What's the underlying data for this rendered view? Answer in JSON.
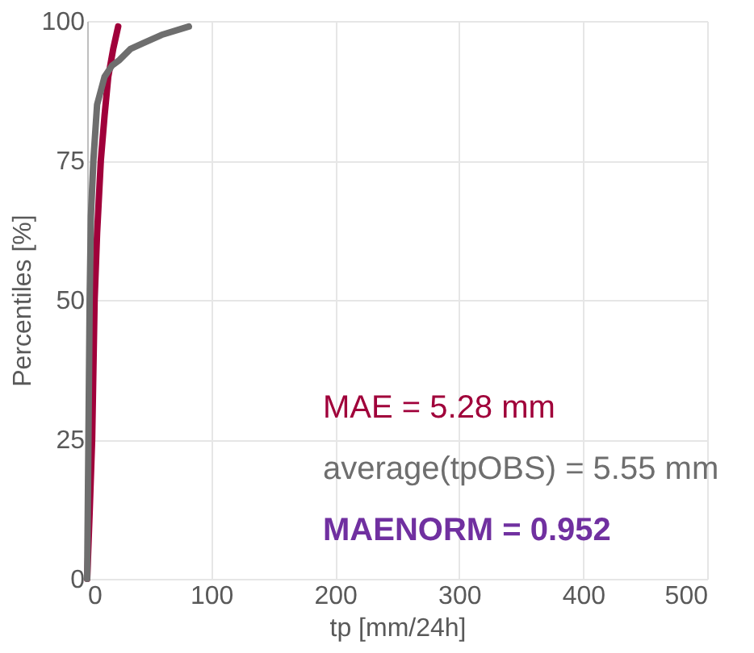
{
  "chart_data": {
    "type": "line",
    "xlabel": "tp [mm/24h]",
    "ylabel": "Percentiles [%]",
    "series": [
      {
        "color": "#a0003a",
        "x": [
          0,
          2,
          4,
          6,
          8,
          11,
          14,
          17,
          21,
          25
        ],
        "values": [
          0,
          12,
          25,
          50,
          62,
          75,
          83,
          90,
          95,
          99
        ]
      },
      {
        "color": "#6e6e6e",
        "x": [
          0,
          1,
          2,
          3,
          5,
          8,
          14,
          20,
          26,
          35,
          45,
          60,
          82
        ],
        "values": [
          0,
          25,
          50,
          65,
          75,
          85,
          90,
          92,
          93,
          95,
          96,
          97.5,
          99
        ]
      }
    ],
    "xlim": [
      0,
      500
    ],
    "xticks": [
      0,
      100,
      200,
      300,
      400,
      500
    ],
    "ylim": [
      0,
      100
    ],
    "yticks": [
      0,
      25,
      50,
      75,
      100
    ],
    "grid": true,
    "annotations": [
      "MAE = 5.28 mm",
      "average(tpOBS) = 5.55 mm",
      "MAENORM = 0.952"
    ]
  }
}
